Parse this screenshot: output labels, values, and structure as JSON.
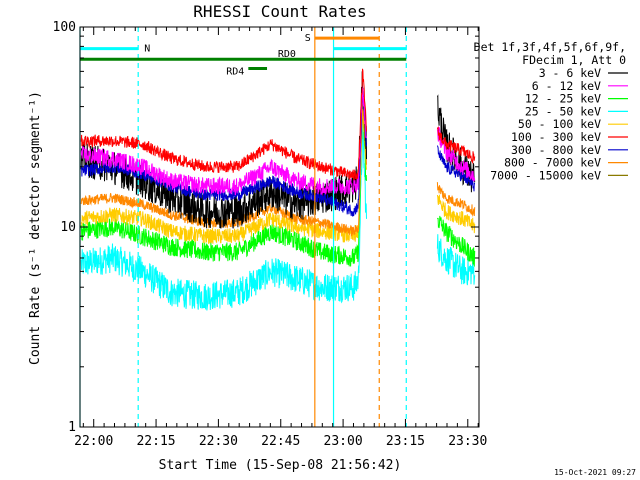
{
  "chart_data": {
    "type": "line",
    "title": "RHESSI Count Rates",
    "xlabel": "Start Time (15-Sep-08 21:56:42)",
    "ylabel": "Count Rate (s⁻¹ detector segment⁻¹)",
    "y_scale": "log",
    "ylim": [
      1,
      100
    ],
    "xlim_minutes": [
      0,
      96
    ],
    "y_ticks": [
      "1",
      "10",
      "100"
    ],
    "x_ticks": [
      {
        "label": "22:00",
        "minute": 3.3
      },
      {
        "label": "22:15",
        "minute": 18.3
      },
      {
        "label": "22:30",
        "minute": 33.3
      },
      {
        "label": "22:45",
        "minute": 48.3
      },
      {
        "label": "23:00",
        "minute": 63.3
      },
      {
        "label": "23:15",
        "minute": 78.3
      },
      {
        "label": "23:30",
        "minute": 93.3
      }
    ],
    "legend_header": [
      "Det 1f,3f,4f,5f,6f,9f,",
      "FDecim 1, Att 0"
    ],
    "legend_placement": "right",
    "timestamp": "15-Oct-2021 09:27",
    "series": [
      {
        "name": "3 - 6 keV",
        "color": "#000000",
        "base": 22,
        "noise": 0.2,
        "points": [
          [
            0,
            22
          ],
          [
            8,
            20
          ],
          [
            15,
            17
          ],
          [
            22,
            14
          ],
          [
            30,
            12
          ],
          [
            38,
            12
          ],
          [
            46,
            15
          ],
          [
            52,
            13
          ],
          [
            58,
            14
          ],
          [
            66,
            16
          ],
          [
            67,
            18
          ],
          [
            68,
            55
          ],
          [
            69,
            24
          ]
        ],
        "post": [
          [
            86,
            40
          ],
          [
            88,
            26
          ],
          [
            92,
            20
          ],
          [
            95,
            17
          ]
        ]
      },
      {
        "name": "6 - 12 keV",
        "color": "#ff00ff",
        "base": 23,
        "noise": 0.1,
        "points": [
          [
            0,
            23
          ],
          [
            8,
            22
          ],
          [
            15,
            20
          ],
          [
            22,
            17
          ],
          [
            30,
            16
          ],
          [
            38,
            16
          ],
          [
            46,
            20
          ],
          [
            52,
            17
          ],
          [
            58,
            16
          ],
          [
            66,
            16
          ],
          [
            67,
            17
          ],
          [
            68,
            50
          ],
          [
            69,
            26
          ]
        ],
        "post": [
          [
            86,
            30
          ],
          [
            88,
            24
          ],
          [
            92,
            20
          ],
          [
            95,
            18
          ]
        ]
      },
      {
        "name": "12 - 25 keV",
        "color": "#00ff00",
        "base": 9.5,
        "noise": 0.11,
        "points": [
          [
            0,
            9.5
          ],
          [
            8,
            10
          ],
          [
            15,
            9
          ],
          [
            22,
            8
          ],
          [
            30,
            7.5
          ],
          [
            38,
            7.5
          ],
          [
            46,
            9.5
          ],
          [
            52,
            8.5
          ],
          [
            58,
            7.5
          ],
          [
            66,
            7
          ],
          [
            67,
            7.5
          ],
          [
            68,
            40
          ],
          [
            69,
            15
          ]
        ],
        "post": [
          [
            86,
            11
          ],
          [
            88,
            9.5
          ],
          [
            92,
            8
          ],
          [
            95,
            7
          ]
        ]
      },
      {
        "name": "25 - 50 keV",
        "color": "#00ffff",
        "base": 6.5,
        "noise": 0.17,
        "points": [
          [
            0,
            6.5
          ],
          [
            8,
            7
          ],
          [
            15,
            6
          ],
          [
            22,
            4.7
          ],
          [
            30,
            4.5
          ],
          [
            38,
            4.7
          ],
          [
            46,
            6
          ],
          [
            52,
            5.5
          ],
          [
            58,
            5
          ],
          [
            66,
            5
          ],
          [
            67,
            5.5
          ],
          [
            68,
            30
          ],
          [
            69,
            10
          ]
        ],
        "post": [
          [
            86,
            8
          ],
          [
            88,
            7
          ],
          [
            92,
            6
          ],
          [
            95,
            6
          ]
        ]
      },
      {
        "name": "50 - 100 keV",
        "color": "#ffcc00",
        "base": 11,
        "noise": 0.09,
        "points": [
          [
            0,
            11
          ],
          [
            8,
            11.5
          ],
          [
            15,
            11
          ],
          [
            22,
            9.5
          ],
          [
            30,
            9
          ],
          [
            38,
            9
          ],
          [
            46,
            11
          ],
          [
            52,
            10
          ],
          [
            58,
            9.5
          ],
          [
            66,
            9
          ],
          [
            67,
            9.5
          ],
          [
            68,
            40
          ],
          [
            69,
            18
          ]
        ],
        "post": [
          [
            86,
            14
          ],
          [
            88,
            12
          ],
          [
            92,
            11
          ],
          [
            95,
            10
          ]
        ]
      },
      {
        "name": "100 - 300 keV",
        "color": "#ff0000",
        "base": 27,
        "noise": 0.07,
        "points": [
          [
            0,
            27
          ],
          [
            8,
            27
          ],
          [
            15,
            26
          ],
          [
            22,
            22
          ],
          [
            30,
            20
          ],
          [
            38,
            20
          ],
          [
            46,
            26
          ],
          [
            52,
            22
          ],
          [
            58,
            20
          ],
          [
            66,
            18
          ],
          [
            67,
            19
          ],
          [
            68,
            60
          ],
          [
            69,
            30
          ]
        ],
        "post": [
          [
            86,
            30
          ],
          [
            88,
            26
          ],
          [
            92,
            24
          ],
          [
            95,
            22
          ]
        ]
      },
      {
        "name": "300 - 800 keV",
        "color": "#0000cc",
        "base": 19,
        "noise": 0.07,
        "points": [
          [
            0,
            19
          ],
          [
            8,
            20
          ],
          [
            15,
            18.5
          ],
          [
            22,
            16
          ],
          [
            30,
            14.5
          ],
          [
            38,
            14.5
          ],
          [
            46,
            17
          ],
          [
            52,
            15
          ],
          [
            58,
            14
          ],
          [
            66,
            12
          ],
          [
            67,
            13
          ],
          [
            68,
            50
          ],
          [
            69,
            24
          ]
        ],
        "post": [
          [
            86,
            24
          ],
          [
            88,
            20
          ],
          [
            92,
            18
          ],
          [
            95,
            16
          ]
        ]
      },
      {
        "name": "800 - 7000 keV",
        "color": "#ff8800",
        "base": 13.5,
        "noise": 0.06,
        "points": [
          [
            0,
            13.5
          ],
          [
            8,
            14
          ],
          [
            15,
            13
          ],
          [
            22,
            11.5
          ],
          [
            30,
            10.5
          ],
          [
            38,
            10.5
          ],
          [
            46,
            12.5
          ],
          [
            52,
            11
          ],
          [
            58,
            10.5
          ],
          [
            66,
            9.5
          ],
          [
            67,
            10
          ],
          [
            68,
            45
          ],
          [
            69,
            20
          ]
        ],
        "post": [
          [
            86,
            16
          ],
          [
            88,
            14
          ],
          [
            92,
            13
          ],
          [
            95,
            12
          ]
        ]
      },
      {
        "name": "7000 - 15000 keV",
        "color": "#8a7a00",
        "base": 10,
        "noise": 0.05,
        "points": [],
        "post": []
      }
    ],
    "annotations": [
      {
        "label": "N",
        "color": "#00ffff"
      },
      {
        "label": "S",
        "color": "#ff8800"
      },
      {
        "label": "RD0",
        "color": "#008000"
      },
      {
        "label": "RD4",
        "color": "#008000"
      }
    ],
    "flags": [
      {
        "label": "N",
        "color": "#00ffff",
        "segments": [
          [
            0,
            14
          ],
          [
            61,
            78.5
          ]
        ],
        "level": 78
      },
      {
        "label": "S",
        "color": "#ff8800",
        "segments": [
          [
            56.5,
            72
          ]
        ],
        "level": 88
      },
      {
        "label": "RD0",
        "color": "#008000",
        "segments": [
          [
            0,
            78.5
          ]
        ],
        "level": 69
      },
      {
        "label": "RD4",
        "color": "#008000",
        "segments": [
          [
            40.5,
            45
          ]
        ],
        "level": 62
      }
    ],
    "vlines": [
      {
        "minute": 0,
        "color": "#00ffff",
        "style": "solid"
      },
      {
        "minute": 14,
        "color": "#00ffff",
        "style": "dashed"
      },
      {
        "minute": 56.5,
        "color": "#ff8800",
        "style": "solid"
      },
      {
        "minute": 61,
        "color": "#00ffff",
        "style": "solid"
      },
      {
        "minute": 72,
        "color": "#ff8800",
        "style": "dashed"
      },
      {
        "minute": 78.5,
        "color": "#00ffff",
        "style": "dashed"
      }
    ]
  }
}
